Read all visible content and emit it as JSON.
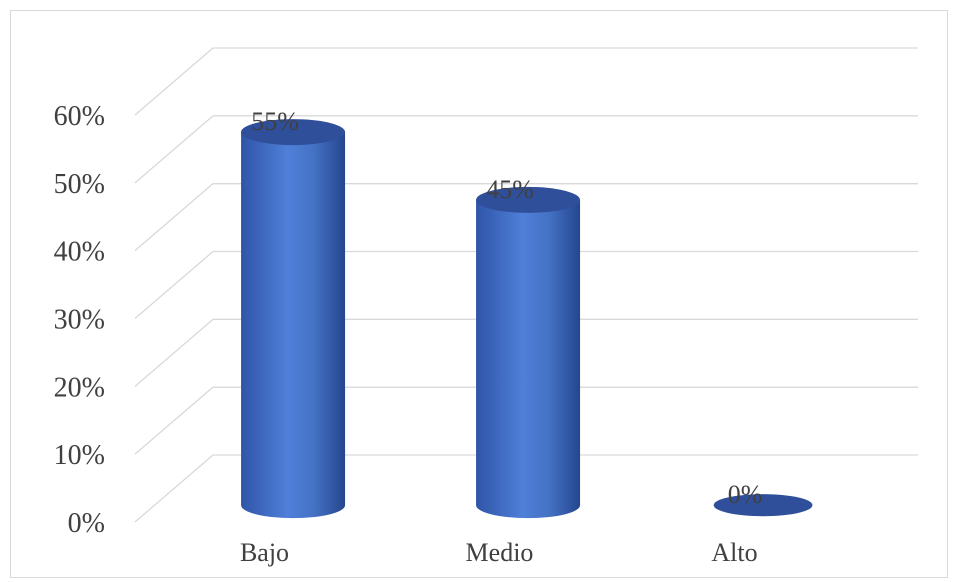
{
  "chart_data": {
    "type": "bar",
    "style": "3d-cylinder",
    "categories": [
      "Bajo",
      "Medio",
      "Alto"
    ],
    "values": [
      55,
      45,
      0
    ],
    "data_labels": [
      "55%",
      "45%",
      "0%"
    ],
    "ylim": [
      0,
      60
    ],
    "ytick_labels": [
      "0%",
      "10%",
      "20%",
      "30%",
      "40%",
      "50%",
      "60%"
    ],
    "grid": true,
    "legend": "none",
    "colors": {
      "bar": "#4472c4",
      "bar_dark": "#2f4f9a",
      "grid": "#d9d9d9",
      "text": "#404040"
    }
  }
}
